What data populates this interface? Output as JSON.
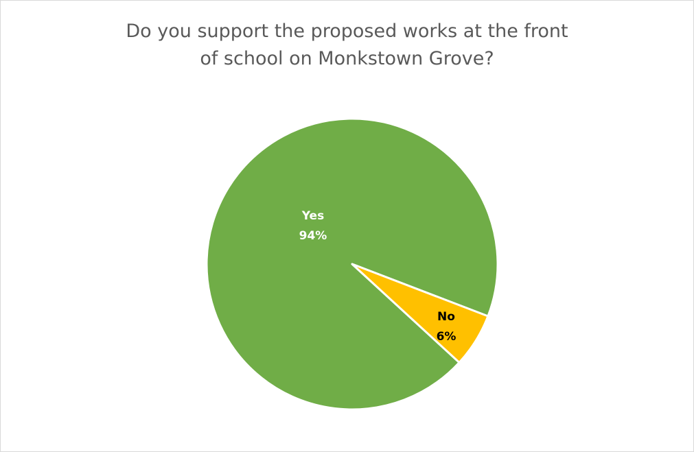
{
  "chart_data": {
    "type": "pie",
    "title_lines": [
      "Do you support the proposed works at the front",
      "of school on Monkstown Grove?"
    ],
    "slices": [
      {
        "label": "Yes",
        "value": 94,
        "value_label": "94%",
        "color": "#70ad47",
        "label_color": "#ffffff"
      },
      {
        "label": "No",
        "value": 6,
        "value_label": "6%",
        "color": "#ffc000",
        "label_color": "#000000"
      }
    ],
    "legend": "none",
    "slice_border_color": "#ffffff"
  }
}
